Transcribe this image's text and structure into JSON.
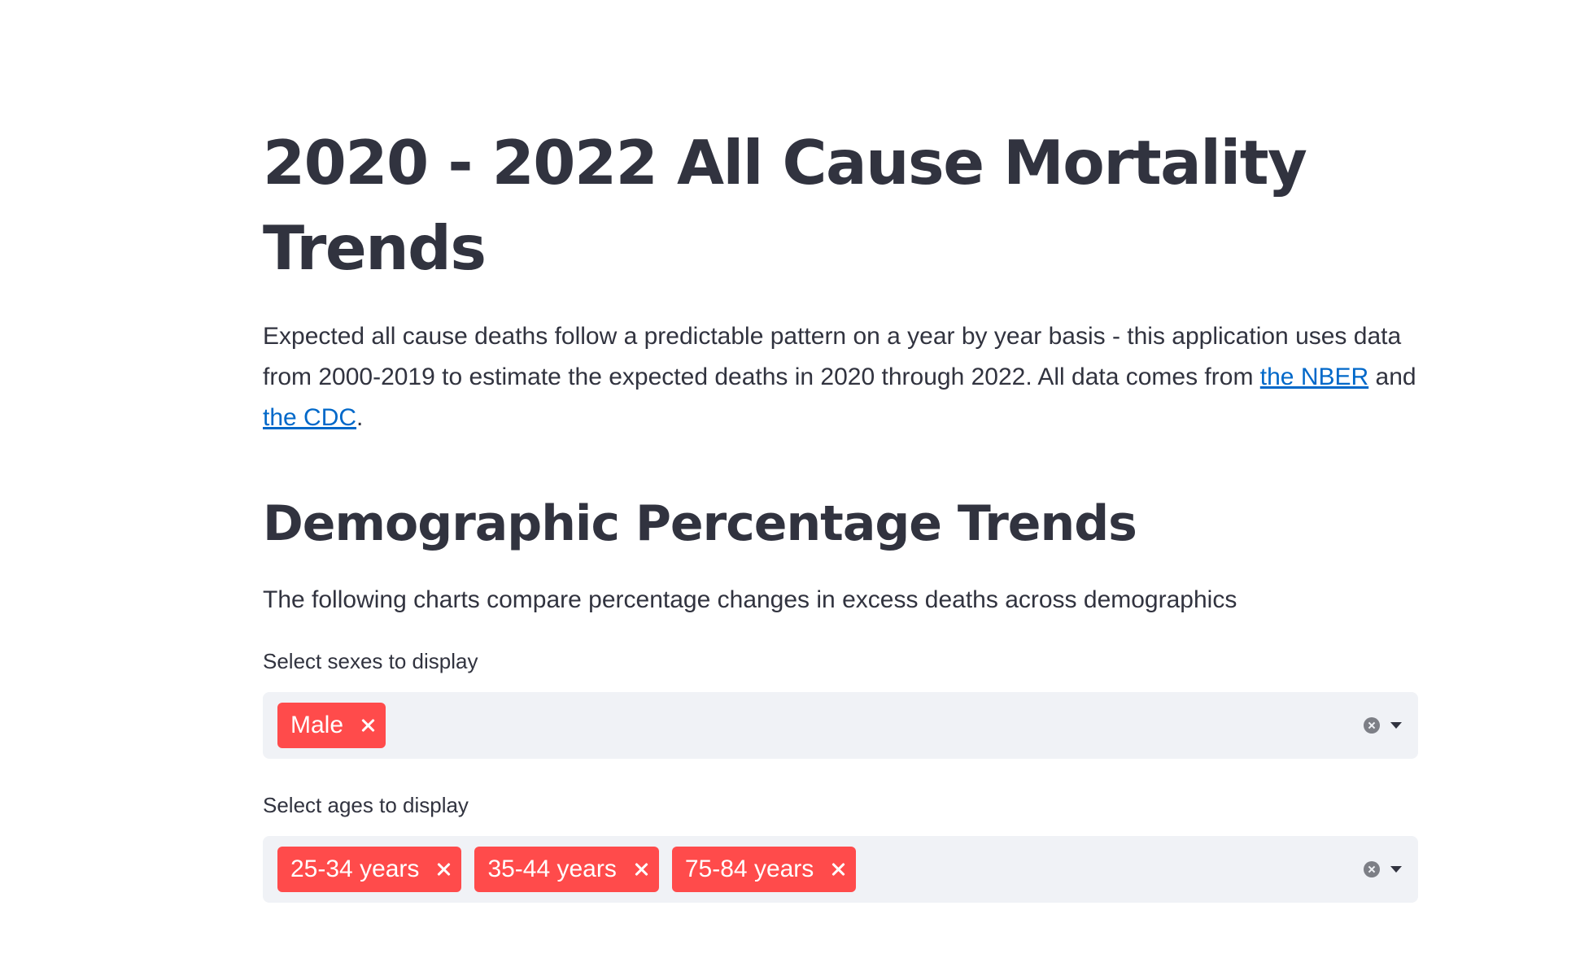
{
  "page": {
    "title": "2020 - 2022 All Cause Mortality Trends",
    "intro": {
      "text_before": "Expected all cause deaths follow a predictable pattern on a year by year basis - this application uses data from 2000-2019 to estimate the expected deaths in 2020 through 2022. All data comes from ",
      "link1": "the NBER",
      "text_between": " and ",
      "link2": "the CDC",
      "text_after": "."
    }
  },
  "section": {
    "title": "Demographic Percentage Trends",
    "description": "The following charts compare percentage changes in excess deaths across demographics"
  },
  "sex_select": {
    "label": "Select sexes to display",
    "selected": [
      "Male"
    ]
  },
  "age_select": {
    "label": "Select ages to display",
    "selected": [
      "25-34 years",
      "35-44 years",
      "75-84 years"
    ]
  },
  "colors": {
    "tag_background": "#ff4b4b",
    "link": "#0068c9",
    "input_background": "#f0f2f6",
    "text": "#31333f"
  },
  "icons": {
    "tag_remove": "close-icon",
    "clear_all": "clear-circle-icon",
    "dropdown": "chevron-down-icon"
  }
}
